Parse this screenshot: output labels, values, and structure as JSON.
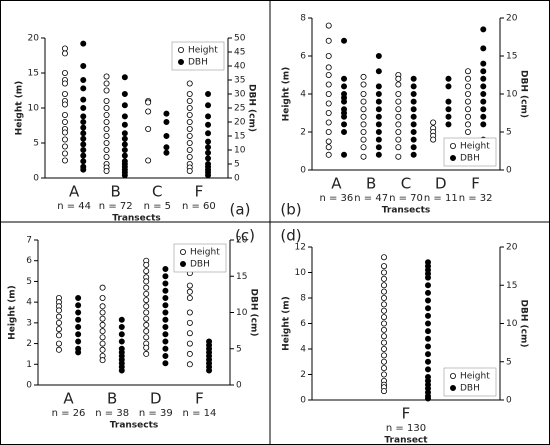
{
  "chart_data": [
    {
      "type": "scatter",
      "panel": "(a)",
      "xlabel": "Transects",
      "ylabel": "Height (m)",
      "y2label": "DBH (cm)",
      "categories": [
        "A",
        "B",
        "C",
        "F"
      ],
      "sample_labels": [
        "n = 44",
        "n = 72",
        "n = 5",
        "n = 60"
      ],
      "ylim": [
        0,
        20
      ],
      "yticks": [
        0,
        5,
        10,
        15,
        20
      ],
      "y2lim": [
        0,
        50
      ],
      "y2ticks": [
        0,
        5,
        10,
        15,
        20,
        25,
        30,
        35,
        40,
        45,
        50
      ],
      "legend": "upper right",
      "series": [
        {
          "name": "Height",
          "color": "#000000",
          "marker": "open",
          "values": [
            [
              18.5,
              17.8,
              15,
              14,
              13.5,
              12,
              11,
              10.5,
              9,
              8,
              7,
              6.5,
              5.5,
              4.5,
              3.5,
              2.5
            ],
            [
              14.5,
              13.5,
              12.5,
              11,
              10,
              9,
              8,
              7,
              6,
              5,
              4,
              3,
              2,
              1.5,
              1
            ],
            [
              11,
              10.8,
              9.5,
              7,
              2.5
            ],
            [
              13.5,
              12,
              11,
              10,
              9,
              8,
              7,
              6,
              5,
              4,
              3,
              2,
              1.5,
              1
            ]
          ]
        },
        {
          "name": "DBH",
          "color": "#000000",
          "marker": "filled",
          "axis": "y2",
          "values": [
            [
              48,
              40,
              35,
              32,
              28,
              25,
              22,
              20,
              18,
              16,
              14,
              12,
              10,
              8,
              6,
              4,
              3
            ],
            [
              36,
              30,
              26,
              22,
              19,
              16,
              14,
              12,
              10,
              8,
              6,
              5,
              4,
              3,
              2,
              1
            ],
            [
              23,
              20,
              15,
              11,
              9
            ],
            [
              30,
              26,
              22,
              19,
              16,
              13,
              11,
              9,
              7,
              5,
              4,
              3,
              2,
              1
            ]
          ]
        }
      ]
    },
    {
      "type": "scatter",
      "panel": "(b)",
      "xlabel": "Transects",
      "ylabel": "Height (m)",
      "y2label": "DBH (cm)",
      "categories": [
        "A",
        "B",
        "C",
        "D",
        "F"
      ],
      "sample_labels": [
        "n = 36",
        "n = 47",
        "n = 70",
        "n = 11",
        "n = 32"
      ],
      "ylim": [
        0,
        8
      ],
      "yticks": [
        0,
        2,
        4,
        6,
        8
      ],
      "y2lim": [
        0,
        20
      ],
      "y2ticks": [
        0,
        5,
        10,
        15,
        20
      ],
      "legend": "lower right",
      "series": [
        {
          "name": "Height",
          "color": "#000000",
          "marker": "open",
          "values": [
            [
              7.6,
              6.8,
              6,
              5.4,
              5,
              4.5,
              4,
              3.5,
              3,
              2.5,
              2,
              1.5,
              1.2,
              0.8
            ],
            [
              4.9,
              4.5,
              4,
              3.6,
              3.2,
              2.8,
              2.4,
              2,
              1.6,
              1.2,
              0.7
            ],
            [
              5,
              4.8,
              4.5,
              4,
              3.6,
              3.2,
              2.8,
              2.4,
              2,
              1.6,
              1.2,
              0.7
            ],
            [
              2.5,
              2.2,
              2,
              1.8,
              1.6
            ],
            [
              5.2,
              4.8,
              4.4,
              4,
              3.6,
              3.2,
              2.8,
              2.4,
              2,
              1.4,
              0.6
            ]
          ]
        },
        {
          "name": "DBH",
          "color": "#000000",
          "marker": "filled",
          "axis": "y2",
          "values": [
            [
              17,
              12,
              11,
              10,
              9.5,
              9,
              8,
              7.5,
              7,
              6,
              5,
              2
            ],
            [
              15,
              13,
              11,
              10,
              9,
              8,
              7,
              6,
              5,
              4,
              3,
              2
            ],
            [
              12,
              11,
              10,
              9,
              8,
              7,
              6,
              5,
              4,
              3,
              2
            ],
            [
              12,
              11,
              9,
              8,
              7,
              6,
              1.5
            ],
            [
              18.5,
              16,
              14,
              13,
              12,
              11,
              10,
              9,
              8,
              7,
              6,
              4,
              3
            ]
          ]
        }
      ]
    },
    {
      "type": "scatter",
      "panel": "(c)",
      "xlabel": "Transects",
      "ylabel": "Height (m)",
      "y2label": "DBH (cm)",
      "categories": [
        "A",
        "B",
        "D",
        "F"
      ],
      "sample_labels": [
        "n = 26",
        "n = 38",
        "n = 39",
        "n = 14"
      ],
      "ylim": [
        0,
        7
      ],
      "yticks": [
        0,
        1,
        2,
        3,
        4,
        5,
        6,
        7
      ],
      "y2lim": [
        0,
        20
      ],
      "y2ticks": [
        0,
        5,
        10,
        15,
        20
      ],
      "legend": "upper right",
      "series": [
        {
          "name": "Height",
          "color": "#000000",
          "marker": "open",
          "values": [
            [
              4.2,
              4,
              3.8,
              3.6,
              3.3,
              3,
              2.7,
              2.4,
              2,
              1.7
            ],
            [
              4.7,
              4.2,
              3.8,
              3.5,
              3.2,
              2.9,
              2.6,
              2.3,
              2,
              1.7,
              1.4,
              1.2
            ],
            [
              6,
              5.8,
              5.5,
              5.2,
              5,
              4.7,
              4.4,
              4.1,
              3.8,
              3.5,
              3.2,
              2.9,
              2.6,
              2.3,
              2,
              1.8,
              1.5
            ],
            [
              5.4,
              4.8,
              4.5,
              4.2,
              3.5,
              3,
              2.5,
              2,
              1.5,
              1
            ]
          ]
        },
        {
          "name": "DBH",
          "color": "#000000",
          "marker": "filled",
          "axis": "y2",
          "values": [
            [
              12,
              11,
              10,
              9,
              8,
              7,
              6,
              5,
              4.5
            ],
            [
              9,
              8,
              7,
              6,
              5,
              4.5,
              4,
              3.5,
              3,
              2.5,
              2
            ],
            [
              16,
              15,
              14,
              13,
              12,
              11,
              10,
              9,
              8,
              7,
              6,
              5,
              4,
              3
            ],
            [
              6,
              5.5,
              5,
              4.5,
              4,
              3.5,
              3,
              2.5,
              2
            ]
          ]
        }
      ]
    },
    {
      "type": "scatter",
      "panel": "(d)",
      "xlabel": "Transect",
      "ylabel": "Height (m)",
      "y2label": "DBH (cm)",
      "categories": [
        "F"
      ],
      "sample_labels": [
        "n = 130"
      ],
      "ylim": [
        0,
        12
      ],
      "yticks": [
        0,
        2,
        4,
        6,
        8,
        10,
        12
      ],
      "y2lim": [
        0,
        20
      ],
      "y2ticks": [
        0,
        5,
        10,
        15,
        20
      ],
      "legend": "lower right",
      "series": [
        {
          "name": "Height",
          "color": "#000000",
          "marker": "open",
          "values": [
            [
              11.2,
              10.5,
              10,
              9.5,
              9,
              8.5,
              8,
              7.5,
              7,
              6.5,
              6,
              5.5,
              5,
              4.5,
              4,
              3.5,
              3,
              2.5,
              2,
              1.5,
              1.2,
              1,
              0.7
            ]
          ]
        },
        {
          "name": "DBH",
          "color": "#000000",
          "marker": "filled",
          "axis": "y2",
          "values": [
            [
              18,
              17.5,
              17,
              16.5,
              16,
              15,
              14,
              13,
              12,
              11,
              10,
              9,
              8,
              7,
              6,
              5,
              4,
              3,
              2.5,
              2,
              1.5,
              1,
              0.5,
              0.2
            ]
          ]
        }
      ]
    }
  ]
}
